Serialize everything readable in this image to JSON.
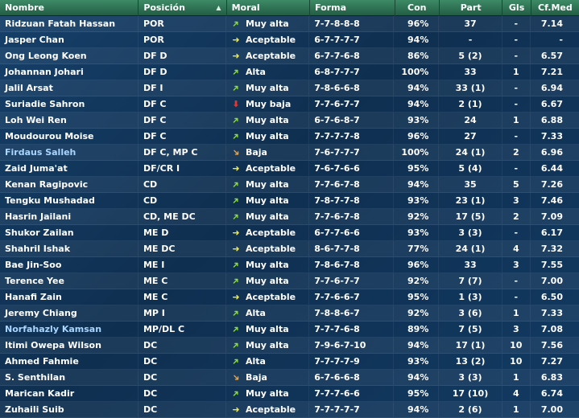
{
  "columns": {
    "name": "Nombre",
    "position": "Posición",
    "sort_indicator": "▲",
    "moral": "Moral",
    "form": "Forma",
    "con": "Con",
    "part": "Part",
    "gls": "Gls",
    "cf": "Cf.Med"
  },
  "colors": {
    "header": "#2f7a58",
    "background": "#12375c",
    "link_name": "#a9d6ff",
    "morale_up": "#8bdc3a",
    "morale_right": "#f2e93a",
    "morale_down": "#e8362e",
    "morale_down_right": "#f0a234"
  },
  "players": [
    {
      "name": "Ridzuan Fatah Hassan",
      "pos": "POR",
      "arrow": "up",
      "moral": "Muy alta",
      "form": "7-7-8-8-8",
      "con": "96%",
      "part": "37",
      "gls": "-",
      "cf": "7.14",
      "link": false
    },
    {
      "name": "Jasper Chan",
      "pos": "POR",
      "arrow": "right",
      "moral": "Aceptable",
      "form": "6-7-7-7-7",
      "con": "94%",
      "part": "-",
      "gls": "-",
      "cf": "-",
      "link": false
    },
    {
      "name": "Ong Leong Koen",
      "pos": "DF D",
      "arrow": "right",
      "moral": "Aceptable",
      "form": "6-7-7-6-8",
      "con": "86%",
      "part": "5 (2)",
      "gls": "-",
      "cf": "6.57",
      "link": false
    },
    {
      "name": "Johannan Johari",
      "pos": "DF D",
      "arrow": "up",
      "moral": "Alta",
      "form": "6-8-7-7-7",
      "con": "100%",
      "part": "33",
      "gls": "1",
      "cf": "7.21",
      "link": false
    },
    {
      "name": "Jalil Arsat",
      "pos": "DF I",
      "arrow": "up",
      "moral": "Muy alta",
      "form": "7-8-6-6-8",
      "con": "94%",
      "part": "33 (1)",
      "gls": "-",
      "cf": "6.94",
      "link": false
    },
    {
      "name": "Suriadie Sahron",
      "pos": "DF C",
      "arrow": "down",
      "moral": "Muy baja",
      "form": "7-7-6-7-7",
      "con": "94%",
      "part": "2 (1)",
      "gls": "-",
      "cf": "6.67",
      "link": false
    },
    {
      "name": "Loh Wei Ren",
      "pos": "DF C",
      "arrow": "up",
      "moral": "Muy alta",
      "form": "6-7-6-8-7",
      "con": "93%",
      "part": "24",
      "gls": "1",
      "cf": "6.88",
      "link": false
    },
    {
      "name": "Moudourou Moise",
      "pos": "DF C",
      "arrow": "up",
      "moral": "Muy alta",
      "form": "7-7-7-7-8",
      "con": "96%",
      "part": "27",
      "gls": "-",
      "cf": "7.33",
      "link": false
    },
    {
      "name": "Firdaus Salleh",
      "pos": "DF C, MP C",
      "arrow": "downr",
      "moral": "Baja",
      "form": "7-6-7-7-7",
      "con": "100%",
      "part": "24 (1)",
      "gls": "2",
      "cf": "6.96",
      "link": true
    },
    {
      "name": "Zaid Juma'at",
      "pos": "DF/CR I",
      "arrow": "right",
      "moral": "Aceptable",
      "form": "7-6-7-6-6",
      "con": "95%",
      "part": "5 (4)",
      "gls": "-",
      "cf": "6.44",
      "link": false
    },
    {
      "name": "Kenan Ragipovic",
      "pos": "CD",
      "arrow": "up",
      "moral": "Muy alta",
      "form": "7-7-6-7-8",
      "con": "94%",
      "part": "35",
      "gls": "5",
      "cf": "7.26",
      "link": false
    },
    {
      "name": "Tengku Mushadad",
      "pos": "CD",
      "arrow": "up",
      "moral": "Muy alta",
      "form": "7-8-7-7-8",
      "con": "93%",
      "part": "23 (1)",
      "gls": "3",
      "cf": "7.46",
      "link": false
    },
    {
      "name": "Hasrin Jailani",
      "pos": "CD, ME DC",
      "arrow": "up",
      "moral": "Muy alta",
      "form": "7-7-6-7-8",
      "con": "92%",
      "part": "17 (5)",
      "gls": "2",
      "cf": "7.09",
      "link": false
    },
    {
      "name": "Shukor Zailan",
      "pos": "ME D",
      "arrow": "right",
      "moral": "Aceptable",
      "form": "6-7-7-6-6",
      "con": "93%",
      "part": "3 (3)",
      "gls": "-",
      "cf": "6.17",
      "link": false
    },
    {
      "name": "Shahril Ishak",
      "pos": "ME DC",
      "arrow": "right",
      "moral": "Aceptable",
      "form": "8-6-7-7-8",
      "con": "77%",
      "part": "24 (1)",
      "gls": "4",
      "cf": "7.32",
      "link": false
    },
    {
      "name": "Bae Jin-Soo",
      "pos": "ME I",
      "arrow": "up",
      "moral": "Muy alta",
      "form": "7-8-6-7-8",
      "con": "96%",
      "part": "33",
      "gls": "3",
      "cf": "7.55",
      "link": false
    },
    {
      "name": "Terence Yee",
      "pos": "ME C",
      "arrow": "up",
      "moral": "Muy alta",
      "form": "7-7-6-7-7",
      "con": "92%",
      "part": "7 (7)",
      "gls": "-",
      "cf": "7.00",
      "link": false
    },
    {
      "name": "Hanafi Zain",
      "pos": "ME C",
      "arrow": "right",
      "moral": "Aceptable",
      "form": "7-7-6-6-7",
      "con": "95%",
      "part": "1 (3)",
      "gls": "-",
      "cf": "6.50",
      "link": false
    },
    {
      "name": "Jeremy Chiang",
      "pos": "MP I",
      "arrow": "up",
      "moral": "Alta",
      "form": "7-8-8-6-7",
      "con": "92%",
      "part": "3 (6)",
      "gls": "1",
      "cf": "7.33",
      "link": false
    },
    {
      "name": "Norfahazly Kamsan",
      "pos": "MP/DL C",
      "arrow": "up",
      "moral": "Muy alta",
      "form": "7-7-7-6-8",
      "con": "89%",
      "part": "7 (5)",
      "gls": "3",
      "cf": "7.08",
      "link": true
    },
    {
      "name": "Itimi Owepa Wilson",
      "pos": "DC",
      "arrow": "up",
      "moral": "Muy alta",
      "form": "7-9-6-7-10",
      "con": "94%",
      "part": "17 (1)",
      "gls": "10",
      "cf": "7.56",
      "link": false
    },
    {
      "name": "Ahmed Fahmie",
      "pos": "DC",
      "arrow": "up",
      "moral": "Alta",
      "form": "7-7-7-7-9",
      "con": "93%",
      "part": "13 (2)",
      "gls": "10",
      "cf": "7.27",
      "link": false
    },
    {
      "name": "S. Senthilan",
      "pos": "DC",
      "arrow": "downr",
      "moral": "Baja",
      "form": "6-7-6-6-8",
      "con": "94%",
      "part": "3 (3)",
      "gls": "1",
      "cf": "6.83",
      "link": false
    },
    {
      "name": "Marican Kadir",
      "pos": "DC",
      "arrow": "up",
      "moral": "Muy alta",
      "form": "7-7-7-6-6",
      "con": "95%",
      "part": "17 (10)",
      "gls": "4",
      "cf": "6.74",
      "link": false
    },
    {
      "name": "Zuhaili Suib",
      "pos": "DC",
      "arrow": "right",
      "moral": "Aceptable",
      "form": "7-7-7-7-7",
      "con": "94%",
      "part": "2 (6)",
      "gls": "1",
      "cf": "7.00",
      "link": false
    }
  ]
}
